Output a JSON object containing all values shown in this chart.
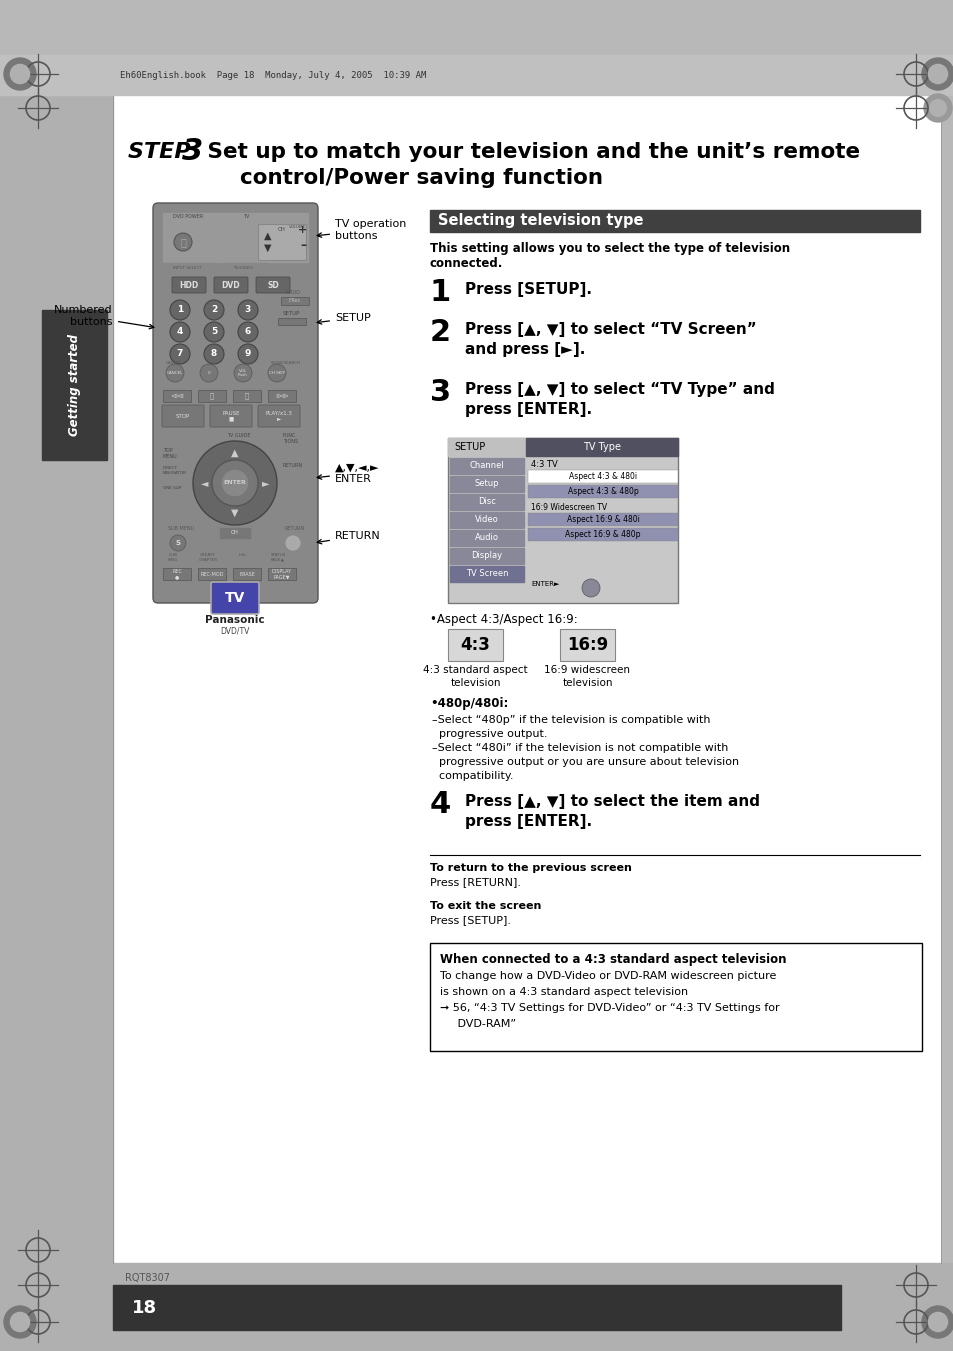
{
  "page_bg": "#ffffff",
  "outer_bg": "#b8b8b8",
  "header_bar_color": "#c8c8c8",
  "header_text": "Eh60English.book  Page 18  Monday, July 4, 2005  10:39 AM",
  "header_text_color": "#333333",
  "header_text_size": 7,
  "sidebar_color": "#b8b8b8",
  "sidebar_dark_bg": "#3a3a3a",
  "getting_started_text": "Getting started",
  "section_header_bg": "#404040",
  "section_header_text": "Selecting television type",
  "section_header_text_color": "#ffffff",
  "intro_line1": "This setting allows you to select the type of television",
  "intro_line2": "connected.",
  "step1_num": "1",
  "step1_text": "Press [SETUP].",
  "step2_num": "2",
  "step2_line1": "Press [▲, ▼] to select “TV Screen”",
  "step2_line2": "and press [►].",
  "step3_num": "3",
  "step3_line1": "Press [▲, ▼] to select “TV Type” and",
  "step3_line2": "press [ENTER].",
  "step4_num": "4",
  "step4_line1": "Press [▲, ▼] to select the item and",
  "step4_line2": "press [ENTER].",
  "label_tv_op_buttons": "TV operation\nbuttons",
  "label_numbered_line1": "Numbered",
  "label_numbered_line2": "buttons",
  "label_setup": "SETUP",
  "label_arrows": "▲,▼,◄,►",
  "label_enter": "ENTER",
  "label_return": "RETURN",
  "aspect_bullet": "•Aspect 4:3/Aspect 16:9:",
  "box43_text": "4:3",
  "box169_text": "16:9",
  "box43_label_line1": "4:3 standard aspect",
  "box43_label_line2": "television",
  "box169_label_line1": "16:9 widescreen",
  "box169_label_line2": "television",
  "bullet_480_header": "•480p/480i:",
  "bullet_480_line1": "–Select “480p” if the television is compatible with",
  "bullet_480_line2": "  progressive output.",
  "bullet_480_line3": "–Select “480i” if the television is not compatible with",
  "bullet_480_line4": "  progressive output or you are unsure about television",
  "bullet_480_line5": "  compatibility.",
  "return_bold": "To return to the previous screen",
  "return_text": "Press [RETURN].",
  "exit_bold": "To exit the screen",
  "exit_text": "Press [SETUP].",
  "note_title": "When connected to a 4:3 standard aspect television",
  "note_line1": "To change how a DVD-Video or DVD-RAM widescreen picture",
  "note_line2": "is shown on a 4:3 standard aspect television",
  "note_line3": "➞ 56, “4:3 TV Settings for DVD-Video” or “4:3 TV Settings for",
  "note_line4": "     DVD-RAM”",
  "page_number": "18",
  "rqt_text": "RQT8307",
  "footer_bg": "#333333",
  "screen_bg": "#c8c8c8",
  "screen_setup_bg": "#888899",
  "screen_header_bg": "#505060",
  "screen_header_text": "TV Type",
  "setup_menu_items": [
    "Channel",
    "Setup",
    "Disc",
    "Video",
    "Audio",
    "Display",
    "TV Screen"
  ],
  "tv_type_4_3_header": "4:3 TV",
  "tv_type_items_43": [
    "Aspect 4:3 & 480i",
    "Aspect 4:3 & 480p"
  ],
  "tv_type_169_header": "16:9 Widescreen TV",
  "tv_type_items_169": [
    "Aspect 16:9 & 480i",
    "Aspect 16:9 & 480p"
  ],
  "selected_item_bg": "#ffffff",
  "unselected_item_bg": "#9090b0",
  "remote_body_color": "#888888",
  "remote_dark": "#555555",
  "remote_darker": "#333333",
  "remote_light": "#aaaaaa",
  "remote_btn_color": "#666666"
}
